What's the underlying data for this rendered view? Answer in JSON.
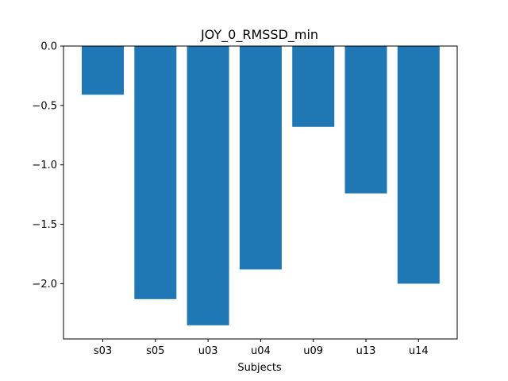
{
  "chart_data": {
    "type": "bar",
    "title": "JOY_0_RMSSD_min",
    "xlabel": "Subjects",
    "ylabel": "",
    "categories": [
      "s03",
      "s05",
      "u03",
      "u04",
      "u09",
      "u13",
      "u14"
    ],
    "values": [
      -0.41,
      -2.13,
      -2.35,
      -1.88,
      -0.68,
      -1.24,
      -2.0
    ],
    "ylim": [
      -2.465,
      0.0
    ],
    "yticks": [
      0.0,
      -0.5,
      -1.0,
      -1.5,
      -2.0
    ],
    "ytick_labels": [
      "0.0",
      "−0.5",
      "−1.0",
      "−1.5",
      "−2.0"
    ],
    "bar_color": "#1f77b4",
    "grid": false,
    "legend": "none"
  }
}
